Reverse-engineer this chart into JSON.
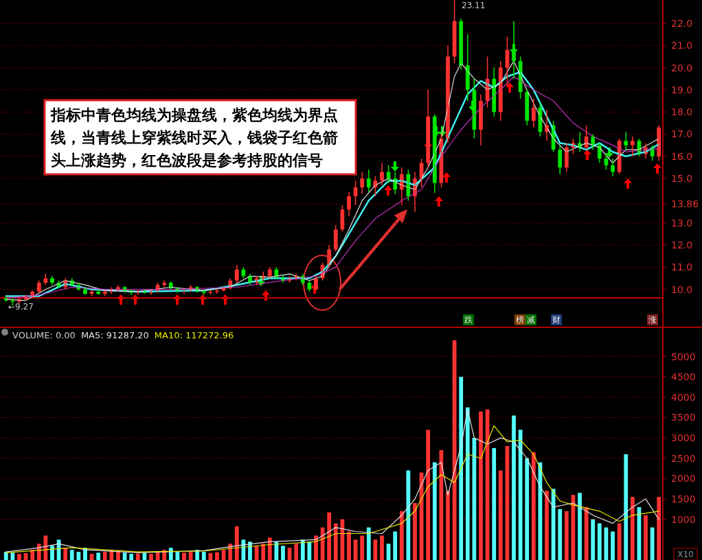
{
  "chart_data": [
    {
      "type": "candlestick",
      "categories": [
        null,
        null,
        null,
        null,
        null,
        null,
        null,
        null,
        null,
        null,
        null,
        null,
        null,
        null,
        null,
        null,
        null,
        null,
        null,
        null,
        null,
        null,
        null,
        null,
        null,
        null,
        null,
        null,
        null,
        null,
        null,
        null,
        null,
        null,
        null,
        null,
        null,
        null,
        null,
        null,
        null,
        null,
        null,
        null,
        null,
        null,
        null,
        null,
        null,
        null,
        null,
        null,
        null,
        null,
        null,
        null,
        null,
        null,
        null,
        null,
        null,
        null,
        null,
        null,
        null,
        null,
        null,
        null,
        null,
        null,
        null,
        null,
        null,
        null,
        null,
        null,
        null,
        null,
        null,
        null,
        null,
        null,
        null,
        null,
        null,
        null,
        null,
        null,
        null,
        null,
        null,
        null,
        null,
        null,
        null,
        null,
        null,
        null,
        null,
        null
      ],
      "ohlc": [
        [
          9.6,
          9.7,
          9.45,
          9.5
        ],
        [
          9.5,
          9.6,
          9.27,
          9.45
        ],
        [
          9.45,
          9.6,
          9.35,
          9.55
        ],
        [
          9.55,
          9.75,
          9.5,
          9.7
        ],
        [
          9.7,
          9.95,
          9.6,
          9.9
        ],
        [
          9.9,
          10.4,
          9.85,
          10.3
        ],
        [
          10.3,
          10.7,
          10.2,
          10.5
        ],
        [
          10.5,
          10.6,
          10.2,
          10.3
        ],
        [
          10.3,
          10.4,
          10.05,
          10.1
        ],
        [
          10.1,
          10.5,
          10.0,
          10.4
        ],
        [
          10.4,
          10.5,
          10.15,
          10.2
        ],
        [
          10.2,
          10.3,
          9.95,
          10.0
        ],
        [
          10.0,
          10.1,
          9.75,
          9.8
        ],
        [
          9.8,
          9.95,
          9.7,
          9.9
        ],
        [
          9.9,
          10.0,
          9.75,
          9.8
        ],
        [
          9.8,
          9.95,
          9.7,
          9.9
        ],
        [
          9.9,
          10.1,
          9.8,
          10.0
        ],
        [
          10.0,
          10.2,
          9.9,
          10.1
        ],
        [
          10.1,
          10.15,
          9.85,
          9.9
        ],
        [
          9.9,
          10.0,
          9.75,
          9.85
        ],
        [
          9.85,
          9.95,
          9.75,
          9.9
        ],
        [
          9.9,
          10.0,
          9.8,
          9.85
        ],
        [
          9.85,
          9.95,
          9.75,
          9.9
        ],
        [
          9.9,
          10.3,
          9.85,
          10.2
        ],
        [
          10.2,
          10.4,
          10.1,
          10.3
        ],
        [
          10.3,
          10.35,
          10.0,
          10.05
        ],
        [
          10.05,
          10.1,
          9.85,
          9.9
        ],
        [
          9.9,
          10.0,
          9.8,
          9.95
        ],
        [
          9.95,
          10.2,
          9.9,
          10.1
        ],
        [
          10.1,
          10.15,
          9.85,
          9.9
        ],
        [
          9.9,
          9.95,
          9.75,
          9.85
        ],
        [
          9.85,
          9.95,
          9.75,
          9.9
        ],
        [
          9.9,
          10.0,
          9.8,
          9.95
        ],
        [
          9.95,
          10.1,
          9.9,
          10.05
        ],
        [
          10.05,
          10.5,
          10.0,
          10.4
        ],
        [
          10.4,
          11.1,
          10.3,
          10.9
        ],
        [
          10.9,
          11.0,
          10.5,
          10.6
        ],
        [
          10.6,
          10.7,
          10.2,
          10.3
        ],
        [
          10.3,
          10.6,
          10.2,
          10.5
        ],
        [
          10.5,
          10.8,
          10.4,
          10.6
        ],
        [
          10.6,
          11.0,
          10.5,
          10.9
        ],
        [
          10.9,
          11.0,
          10.5,
          10.55
        ],
        [
          10.55,
          10.65,
          10.3,
          10.4
        ],
        [
          10.4,
          10.6,
          10.3,
          10.5
        ],
        [
          10.5,
          10.7,
          10.4,
          10.6
        ],
        [
          10.6,
          10.7,
          10.2,
          10.3
        ],
        [
          10.3,
          10.4,
          9.9,
          10.0
        ],
        [
          10.0,
          10.6,
          9.95,
          10.5
        ],
        [
          10.5,
          11.2,
          10.4,
          11.1
        ],
        [
          11.1,
          12.0,
          11.0,
          11.8
        ],
        [
          11.8,
          12.9,
          11.7,
          12.7
        ],
        [
          12.7,
          13.8,
          12.6,
          13.6
        ],
        [
          13.6,
          14.4,
          13.3,
          14.2
        ],
        [
          14.2,
          14.9,
          13.8,
          14.6
        ],
        [
          14.6,
          15.3,
          14.3,
          15.0
        ],
        [
          15.0,
          15.4,
          14.4,
          14.6
        ],
        [
          14.6,
          15.1,
          14.2,
          14.9
        ],
        [
          14.9,
          15.7,
          14.7,
          15.3
        ],
        [
          15.3,
          15.6,
          14.8,
          15.0
        ],
        [
          15.0,
          15.3,
          14.3,
          14.5
        ],
        [
          14.5,
          15.5,
          13.8,
          15.2
        ],
        [
          15.2,
          15.4,
          14.0,
          14.2
        ],
        [
          14.2,
          15.3,
          13.5,
          15.0
        ],
        [
          15.0,
          15.9,
          14.6,
          15.7
        ],
        [
          15.7,
          19.0,
          15.5,
          17.8
        ],
        [
          17.8,
          17.9,
          14.35,
          14.8
        ],
        [
          14.8,
          17.0,
          14.6,
          16.8
        ],
        [
          16.8,
          21.0,
          16.6,
          20.5
        ],
        [
          20.5,
          23.11,
          20.2,
          22.1
        ],
        [
          22.1,
          22.2,
          19.9,
          20.1
        ],
        [
          20.1,
          21.5,
          18.5,
          19.0
        ],
        [
          19.0,
          19.5,
          16.8,
          17.2
        ],
        [
          17.2,
          18.8,
          16.5,
          18.5
        ],
        [
          18.5,
          20.5,
          18.2,
          19.5
        ],
        [
          19.5,
          20.0,
          17.8,
          18.0
        ],
        [
          18.0,
          20.3,
          17.6,
          20.0
        ],
        [
          20.0,
          21.4,
          19.2,
          20.8
        ],
        [
          20.8,
          22.1,
          19.5,
          20.3
        ],
        [
          20.3,
          20.5,
          18.6,
          18.9
        ],
        [
          18.9,
          19.0,
          17.4,
          17.6
        ],
        [
          17.6,
          18.6,
          17.3,
          18.2
        ],
        [
          18.2,
          18.4,
          16.9,
          17.1
        ],
        [
          17.1,
          18.1,
          16.7,
          17.4
        ],
        [
          17.4,
          17.6,
          16.2,
          16.3
        ],
        [
          16.3,
          16.5,
          15.2,
          15.5
        ],
        [
          15.5,
          16.6,
          15.3,
          16.4
        ],
        [
          16.4,
          16.8,
          16.1,
          16.6
        ],
        [
          16.6,
          17.1,
          16.2,
          16.4
        ],
        [
          16.4,
          17.4,
          16.3,
          16.9
        ],
        [
          16.9,
          17.0,
          16.3,
          16.5
        ],
        [
          16.5,
          16.6,
          15.7,
          15.9
        ],
        [
          15.9,
          16.1,
          15.4,
          15.6
        ],
        [
          15.6,
          15.9,
          15.1,
          15.3
        ],
        [
          15.3,
          16.8,
          15.2,
          16.7
        ],
        [
          16.7,
          17.1,
          16.3,
          16.5
        ],
        [
          16.5,
          16.9,
          16.0,
          16.7
        ],
        [
          16.7,
          16.8,
          16.0,
          16.1
        ],
        [
          16.1,
          16.6,
          15.9,
          16.4
        ],
        [
          16.4,
          16.5,
          15.8,
          16.0
        ],
        [
          16.0,
          17.4,
          15.8,
          17.3
        ]
      ],
      "colors": [
        "#00e600",
        "#00e600",
        "#ff3232",
        "#ff3232",
        "#ff3232",
        "#ff3232",
        "#ff3232",
        "#00e600",
        "#00e600",
        "#ff3232",
        "#00e600",
        "#00e600",
        "#00e600",
        "#ff3232",
        "#00e600",
        "#ff3232",
        "#ff3232",
        "#ff3232",
        "#00e600",
        "#00e600",
        "#ff3232",
        "#00e600",
        "#ff3232",
        "#ff3232",
        "#ff3232",
        "#00e600",
        "#00e600",
        "#ff3232",
        "#ff3232",
        "#00e600",
        "#00e600",
        "#ff3232",
        "#ff3232",
        "#ff3232",
        "#ff3232",
        "#ff3232",
        "#00e600",
        "#00e600",
        "#ff3232",
        "#ff3232",
        "#ff3232",
        "#00e600",
        "#00e600",
        "#ff3232",
        "#ff3232",
        "#00e600",
        "#00e600",
        "#ff3232",
        "#ff3232",
        "#ff3232",
        "#ff3232",
        "#ff3232",
        "#ff3232",
        "#ff3232",
        "#ff3232",
        "#00e600",
        "#ff3232",
        "#ff3232",
        "#00e600",
        "#00e600",
        "#ff3232",
        "#00e600",
        "#ff3232",
        "#ff3232",
        "#ff3232",
        "#00e600",
        "#ff3232",
        "#ff3232",
        "#ff3232",
        "#00e600",
        "#00e600",
        "#00e600",
        "#ff3232",
        "#ff3232",
        "#00e600",
        "#ff3232",
        "#ff3232",
        "#00e600",
        "#00e600",
        "#00e600",
        "#ff3232",
        "#00e600",
        "#ff3232",
        "#00e600",
        "#00e600",
        "#ff3232",
        "#ff3232",
        "#00e600",
        "#ff3232",
        "#00e600",
        "#00e600",
        "#00e600",
        "#00e600",
        "#ff3232",
        "#00e600",
        "#ff3232",
        "#00e600",
        "#ff3232",
        "#00e600",
        "#ff3232"
      ],
      "series": [
        {
          "type": "line",
          "color": "#e0e0e0",
          "values": [
            9.55,
            null,
            null,
            9.5,
            null,
            null,
            10.0,
            null,
            null,
            10.4,
            null,
            null,
            10.2,
            null,
            null,
            9.95,
            null,
            null,
            null,
            null,
            9.9,
            null,
            null,
            null,
            null,
            10.1,
            null,
            null,
            null,
            null,
            9.95,
            null,
            null,
            null,
            10.1,
            null,
            null,
            10.6,
            null,
            null,
            10.55,
            null,
            null,
            10.7,
            null,
            null,
            10.4,
            null,
            10.6,
            null,
            11.5,
            null,
            12.7,
            null,
            14.0,
            null,
            14.7,
            null,
            15.0,
            null,
            14.7,
            null,
            14.5,
            null,
            15.5,
            null,
            16.8,
            null,
            19.6,
            20.2,
            null,
            19.5,
            null,
            19.0,
            null,
            19.3,
            null,
            20.3,
            null,
            19.0,
            null,
            17.8,
            null,
            16.8,
            null,
            16.2,
            null,
            null,
            16.6,
            null,
            16.4,
            null,
            15.7,
            null,
            16.3,
            null,
            16.3,
            null,
            null,
            16.8
          ]
        },
        {
          "type": "line",
          "color": "#3ff0f0",
          "values": [
            9.7,
            null,
            null,
            null,
            null,
            9.7,
            null,
            null,
            null,
            10.25,
            null,
            null,
            null,
            10.0,
            null,
            null,
            null,
            null,
            null,
            null,
            9.9,
            null,
            null,
            null,
            null,
            null,
            null,
            null,
            null,
            null,
            9.95,
            null,
            null,
            null,
            null,
            10.2,
            null,
            null,
            null,
            null,
            10.5,
            null,
            null,
            null,
            null,
            null,
            10.5,
            null,
            10.8,
            null,
            11.5,
            null,
            12.5,
            null,
            null,
            14.0,
            null,
            null,
            14.9,
            null,
            14.9,
            null,
            14.7,
            null,
            null,
            15.5,
            null,
            null,
            17.5,
            null,
            18.8,
            null,
            19.4,
            null,
            19.1,
            null,
            19.6,
            null,
            19.8,
            null,
            19.0,
            null,
            17.8,
            null,
            16.6,
            null,
            16.5,
            null,
            16.3,
            null,
            16.6,
            null,
            16.2,
            null,
            16.0,
            null,
            null,
            16.2,
            null,
            16.55
          ]
        },
        {
          "type": "line",
          "color": "#c030c0",
          "values": [
            9.6,
            null,
            null,
            null,
            null,
            9.75,
            null,
            null,
            null,
            null,
            10.1,
            null,
            null,
            null,
            null,
            10.0,
            null,
            null,
            null,
            null,
            null,
            null,
            null,
            null,
            null,
            10.0,
            null,
            null,
            null,
            null,
            null,
            null,
            null,
            null,
            null,
            10.1,
            null,
            null,
            null,
            null,
            null,
            null,
            10.4,
            null,
            null,
            null,
            null,
            10.6,
            null,
            null,
            11.0,
            null,
            null,
            12.2,
            null,
            null,
            13.2,
            null,
            null,
            null,
            14.0,
            null,
            null,
            14.5,
            null,
            null,
            16.0,
            null,
            null,
            17.2,
            null,
            null,
            18.2,
            null,
            null,
            19.0,
            null,
            19.6,
            null,
            null,
            19.0,
            null,
            null,
            18.5,
            null,
            null,
            17.5,
            null,
            null,
            16.9,
            null,
            null,
            16.5,
            null,
            16.2,
            null,
            null,
            16.3,
            null,
            16.35
          ]
        }
      ],
      "ylim": [
        8.35,
        23.05
      ],
      "yticks": [
        {
          "value": 10,
          "label": "10.0"
        },
        {
          "value": 11,
          "label": "11.0"
        },
        {
          "value": 12,
          "label": "12.0"
        },
        {
          "value": 13,
          "label": "13.0"
        },
        {
          "value": 13.86,
          "label": "13.86"
        },
        {
          "value": 15,
          "label": "15.0"
        },
        {
          "value": 16,
          "label": "16.0"
        },
        {
          "value": 17,
          "label": "17.0"
        },
        {
          "value": 18,
          "label": "18.0"
        },
        {
          "value": 19,
          "label": "19.0"
        },
        {
          "value": 20,
          "label": "20.0"
        },
        {
          "value": 21,
          "label": "21.0"
        },
        {
          "value": 22,
          "label": "22.0"
        }
      ],
      "tick_labels": "y",
      "grid": "y",
      "ref_lines": [
        {
          "axis": "y",
          "value": 9.62,
          "color": "#c00000"
        }
      ],
      "annotations": [
        "指标中青色均线为操盘线，紫色均线为界点线，当青线上穿紫线时买入，钱袋子红色箭头上涨趋势，红色波段是参考持股的信号",
        "23.11",
        "←9.27",
        "跌",
        "榜",
        "减",
        "财",
        "涨"
      ]
    },
    {
      "type": "bar",
      "title": "VOLUME: 0.00",
      "categories": [
        null,
        null,
        null,
        null,
        null,
        null,
        null,
        null,
        null,
        null,
        null,
        null,
        null,
        null,
        null,
        null,
        null,
        null,
        null,
        null,
        null,
        null,
        null,
        null,
        null,
        null,
        null,
        null,
        null,
        null,
        null,
        null,
        null,
        null,
        null,
        null,
        null,
        null,
        null,
        null,
        null,
        null,
        null,
        null,
        null,
        null,
        null,
        null,
        null,
        null,
        null,
        null,
        null,
        null,
        null,
        null,
        null,
        null,
        null,
        null,
        null,
        null,
        null,
        null,
        null,
        null,
        null,
        null,
        null,
        null,
        null,
        null,
        null,
        null,
        null,
        null,
        null,
        null,
        null,
        null,
        null,
        null,
        null,
        null,
        null,
        null,
        null,
        null,
        null,
        null,
        null,
        null,
        null,
        null,
        null,
        null,
        null,
        null,
        null,
        null
      ],
      "values": [
        200,
        180,
        150,
        170,
        250,
        400,
        600,
        350,
        500,
        300,
        250,
        200,
        300,
        150,
        180,
        200,
        250,
        220,
        180,
        150,
        160,
        180,
        150,
        200,
        250,
        300,
        220,
        180,
        200,
        250,
        200,
        170,
        190,
        250,
        400,
        830,
        500,
        450,
        350,
        400,
        550,
        450,
        350,
        300,
        400,
        500,
        450,
        600,
        800,
        1170,
        900,
        1000,
        700,
        500,
        600,
        800,
        500,
        600,
        400,
        700,
        1200,
        2200,
        1400,
        2150,
        3200,
        2400,
        2700,
        1700,
        5400,
        4500,
        3750,
        3000,
        3650,
        3700,
        2750,
        2200,
        2800,
        3550,
        3200,
        2500,
        2650,
        2400,
        1700,
        1750,
        1250,
        1200,
        1600,
        1650,
        1300,
        1000,
        900,
        800,
        700,
        900,
        2600,
        1550,
        1300,
        1100,
        800,
        1550
      ],
      "colors": [
        "#54ffff",
        "#54ffff",
        "#ff3232",
        "#ff3232",
        "#ff3232",
        "#ff3232",
        "#ff3232",
        "#54ffff",
        "#54ffff",
        "#ff3232",
        "#54ffff",
        "#54ffff",
        "#54ffff",
        "#ff3232",
        "#54ffff",
        "#ff3232",
        "#ff3232",
        "#ff3232",
        "#54ffff",
        "#54ffff",
        "#ff3232",
        "#54ffff",
        "#ff3232",
        "#ff3232",
        "#ff3232",
        "#54ffff",
        "#54ffff",
        "#ff3232",
        "#ff3232",
        "#54ffff",
        "#54ffff",
        "#ff3232",
        "#ff3232",
        "#ff3232",
        "#ff3232",
        "#ff3232",
        "#54ffff",
        "#54ffff",
        "#ff3232",
        "#ff3232",
        "#ff3232",
        "#54ffff",
        "#54ffff",
        "#ff3232",
        "#ff3232",
        "#54ffff",
        "#54ffff",
        "#ff3232",
        "#ff3232",
        "#ff3232",
        "#ff3232",
        "#ff3232",
        "#ff3232",
        "#ff3232",
        "#ff3232",
        "#54ffff",
        "#ff3232",
        "#ff3232",
        "#54ffff",
        "#54ffff",
        "#ff3232",
        "#54ffff",
        "#ff3232",
        "#ff3232",
        "#ff3232",
        "#54ffff",
        "#ff3232",
        "#ff3232",
        "#ff3232",
        "#54ffff",
        "#54ffff",
        "#54ffff",
        "#ff3232",
        "#ff3232",
        "#54ffff",
        "#ff3232",
        "#ff3232",
        "#54ffff",
        "#54ffff",
        "#54ffff",
        "#ff3232",
        "#54ffff",
        "#ff3232",
        "#54ffff",
        "#54ffff",
        "#ff3232",
        "#ff3232",
        "#54ffff",
        "#ff3232",
        "#54ffff",
        "#54ffff",
        "#54ffff",
        "#54ffff",
        "#ff3232",
        "#54ffff",
        "#ff3232",
        "#54ffff",
        "#ff3232",
        "#54ffff",
        "#ff3232"
      ],
      "series": [
        {
          "type": "line",
          "name": "MA5: 91287.20",
          "color": "#e0e0e0",
          "values": [
            200,
            null,
            null,
            null,
            null,
            300,
            null,
            null,
            400,
            null,
            null,
            null,
            250,
            null,
            null,
            null,
            null,
            null,
            null,
            null,
            180,
            null,
            null,
            null,
            null,
            null,
            null,
            null,
            null,
            null,
            230,
            null,
            null,
            null,
            null,
            350,
            null,
            null,
            null,
            null,
            450,
            null,
            null,
            null,
            null,
            null,
            null,
            500,
            null,
            null,
            800,
            null,
            null,
            700,
            null,
            null,
            null,
            650,
            null,
            null,
            1100,
            null,
            1500,
            null,
            2200,
            null,
            2400,
            1600,
            null,
            2800,
            3700,
            3000,
            null,
            2850,
            null,
            3000,
            null,
            2900,
            null,
            2500,
            null,
            1800,
            null,
            1300,
            null,
            null,
            1400,
            null,
            null,
            1100,
            null,
            null,
            900,
            null,
            null,
            1300,
            null,
            1500,
            null,
            1000
          ]
        },
        {
          "type": "line",
          "name": "MA10: 117272.96",
          "color": "#e8e800",
          "values": [
            180,
            null,
            null,
            null,
            null,
            null,
            null,
            null,
            null,
            null,
            300,
            null,
            null,
            null,
            null,
            null,
            null,
            null,
            null,
            null,
            200,
            null,
            null,
            null,
            null,
            null,
            null,
            null,
            null,
            null,
            220,
            null,
            null,
            null,
            null,
            null,
            null,
            null,
            null,
            null,
            380,
            null,
            null,
            null,
            null,
            null,
            null,
            450,
            null,
            null,
            650,
            null,
            null,
            null,
            null,
            650,
            null,
            null,
            null,
            null,
            900,
            null,
            1200,
            null,
            1800,
            null,
            2100,
            null,
            1900,
            null,
            2600,
            null,
            2500,
            null,
            3300,
            null,
            2900,
            null,
            2950,
            null,
            2600,
            null,
            1900,
            null,
            1450,
            null,
            1350,
            null,
            null,
            null,
            1200,
            null,
            null,
            950,
            null,
            1100,
            null,
            null,
            null,
            1200
          ]
        }
      ],
      "ylim": [
        0,
        5700
      ],
      "yticks": [
        1000,
        1500,
        2000,
        2500,
        3000,
        3500,
        4000,
        4500,
        5000
      ],
      "tick_labels": "y",
      "grid": "y",
      "annotations": [
        "X10"
      ]
    }
  ]
}
